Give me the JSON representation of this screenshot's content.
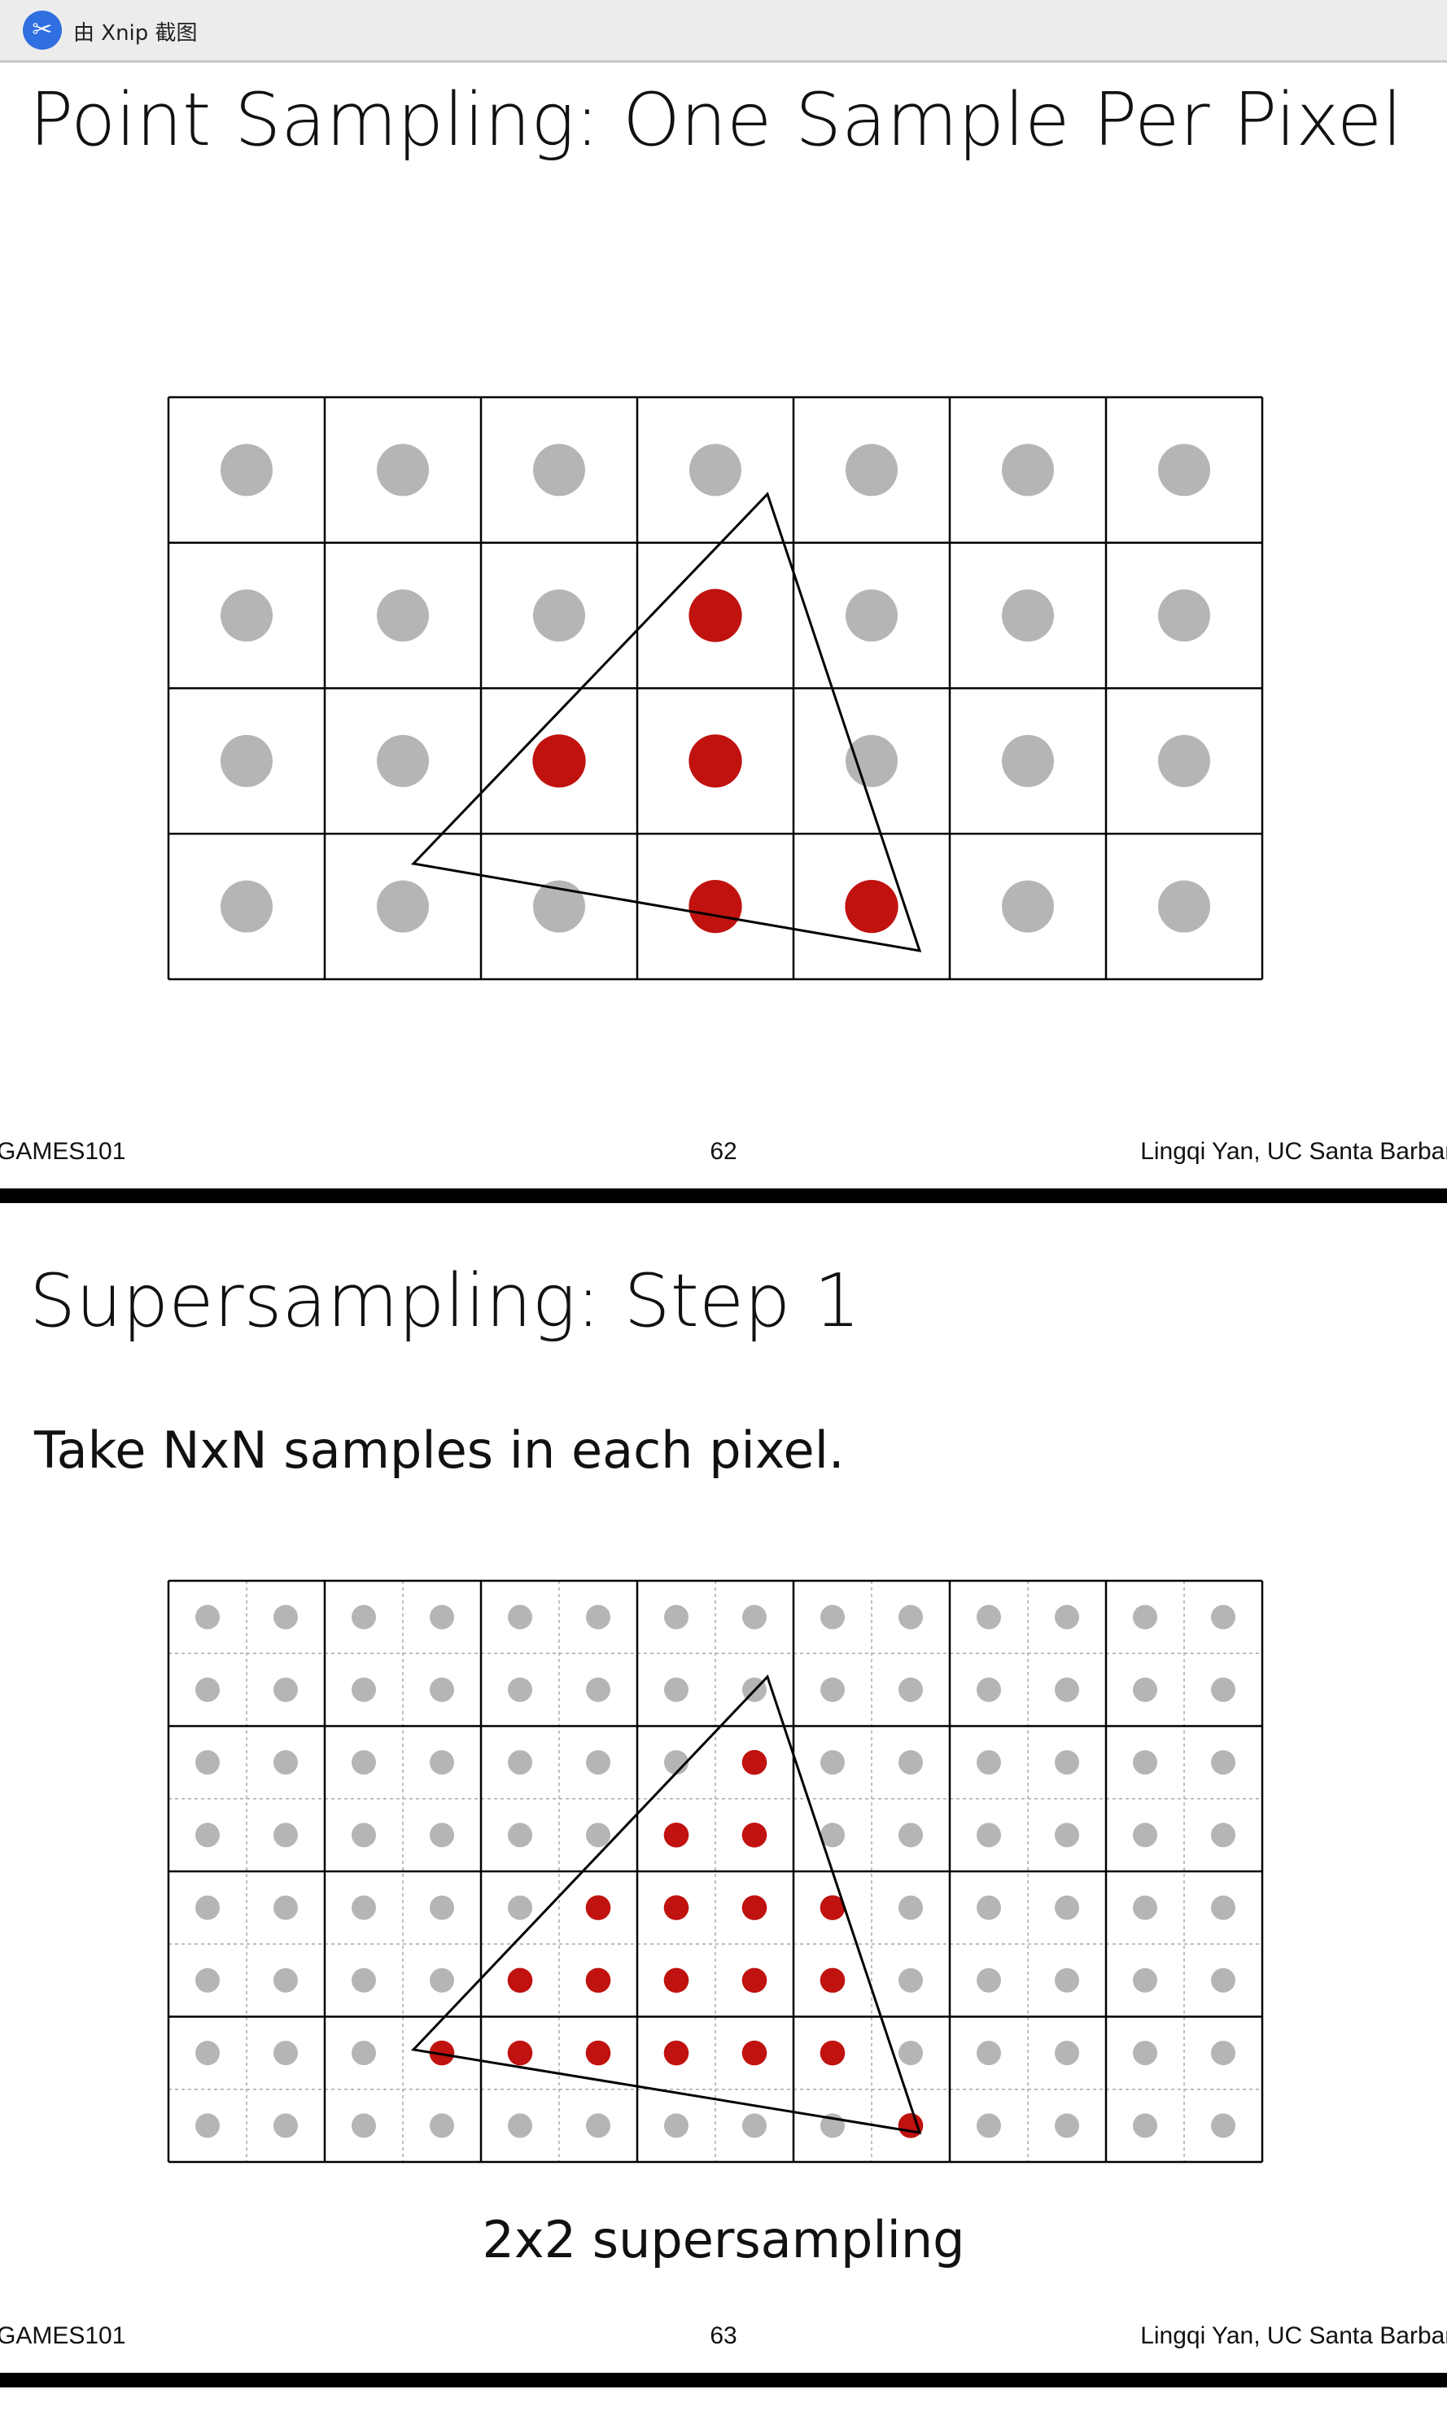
{
  "window": {
    "title": "由 Xnip 截图",
    "icon": "xnip-app-icon"
  },
  "colors": {
    "inside": "#c0120f",
    "outside": "#b5b5b5",
    "grid": "#000000"
  },
  "slides": [
    {
      "title": "Point Sampling: One Sample Per Pixel",
      "grid": {
        "cols": 7,
        "rows": 4
      },
      "inside_samples": [
        [
          3,
          1
        ],
        [
          2,
          2
        ],
        [
          3,
          2
        ],
        [
          3,
          3
        ],
        [
          4,
          3
        ]
      ],
      "footer": {
        "left": "GAMES101",
        "page": "62",
        "right": "Lingqi Yan, UC Santa Barbara"
      }
    },
    {
      "title": "Supersampling: Step 1",
      "subtitle": "Take NxN samples in each pixel.",
      "grid": {
        "cols": 7,
        "rows": 4,
        "sub": 2
      },
      "inside_samples": [
        [
          7,
          2
        ],
        [
          6,
          3
        ],
        [
          7,
          3
        ],
        [
          5,
          4
        ],
        [
          6,
          4
        ],
        [
          7,
          4
        ],
        [
          8,
          4
        ],
        [
          4,
          5
        ],
        [
          5,
          5
        ],
        [
          6,
          5
        ],
        [
          7,
          5
        ],
        [
          8,
          5
        ],
        [
          3,
          6
        ],
        [
          4,
          6
        ],
        [
          5,
          6
        ],
        [
          6,
          6
        ],
        [
          7,
          6
        ],
        [
          8,
          6
        ],
        [
          9,
          7
        ]
      ],
      "caption": "2x2 supersampling",
      "footer": {
        "left": "GAMES101",
        "page": "63",
        "right": "Lingqi Yan, UC Santa Barbara"
      }
    }
  ]
}
